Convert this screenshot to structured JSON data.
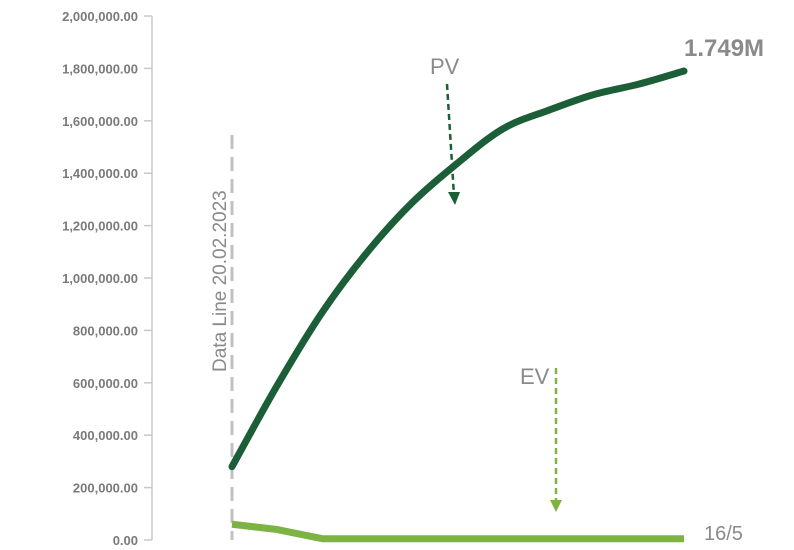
{
  "chart_data": {
    "type": "line",
    "ylim": [
      0,
      2000000
    ],
    "y_ticks": [
      "0.00",
      "200,000.00",
      "400,000.00",
      "600,000.00",
      "800,000.00",
      "1,000,000.00",
      "1,200,000.00",
      "1,400,000.00",
      "1,600,000.00",
      "1,800,000.00",
      "2,000,000.00"
    ],
    "y_tick_values": [
      0,
      200000,
      400000,
      600000,
      800000,
      1000000,
      1200000,
      1400000,
      1600000,
      1800000,
      2000000
    ],
    "x": [
      0,
      0.1,
      0.2,
      0.3,
      0.4,
      0.5,
      0.6,
      0.7,
      0.8,
      0.9,
      1.0
    ],
    "series": [
      {
        "name": "PV",
        "color": "#1b5e37",
        "values": [
          280000,
          590000,
          870000,
          1100000,
          1290000,
          1440000,
          1570000,
          1640000,
          1700000,
          1740000,
          1790000
        ]
      },
      {
        "name": "EV",
        "color": "#7cb342",
        "values": [
          60000,
          40000,
          5000,
          5000,
          5000,
          5000,
          5000,
          5000,
          5000,
          5000,
          5000
        ]
      }
    ],
    "annotations": {
      "data_line": "Data  Line 20.02.2023",
      "end_value": "1.749M",
      "end_date": "16/5",
      "pv_label": "PV",
      "ev_label": "EV"
    },
    "grid": false
  }
}
